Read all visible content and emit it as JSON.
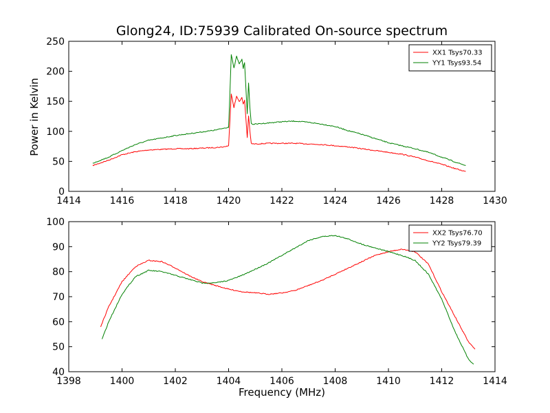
{
  "figure": {
    "title": "Glong24, ID:75939 Calibrated On-source spectrum",
    "xlabel": "Frequency (MHz)",
    "ylabel": "Power in Kelvin"
  },
  "chart_data": [
    {
      "type": "line",
      "title": "Glong24, ID:75939 Calibrated On-source spectrum",
      "xlabel": "",
      "ylabel": "Power in Kelvin",
      "xlim": [
        1414,
        1430
      ],
      "ylim": [
        0,
        250
      ],
      "xticks": [
        "1414",
        "1416",
        "1418",
        "1420",
        "1422",
        "1424",
        "1426",
        "1428",
        "1430"
      ],
      "yticks": [
        "0",
        "50",
        "100",
        "150",
        "200",
        "250"
      ],
      "grid": false,
      "legend": "top-right",
      "series": [
        {
          "name": "XX1 Tsys70.33",
          "color": "#ff0000",
          "x": [
            1414.9,
            1415.5,
            1416.0,
            1416.5,
            1417.0,
            1417.5,
            1418.0,
            1418.5,
            1419.0,
            1419.5,
            1419.8,
            1420.0,
            1420.05,
            1420.1,
            1420.2,
            1420.3,
            1420.4,
            1420.5,
            1420.55,
            1420.6,
            1420.7,
            1420.75,
            1420.8,
            1420.85,
            1420.9,
            1421.0,
            1421.5,
            1422.0,
            1422.5,
            1423.0,
            1423.5,
            1424.0,
            1424.5,
            1425.0,
            1425.5,
            1426.0,
            1426.5,
            1427.0,
            1427.5,
            1428.0,
            1428.5,
            1428.9
          ],
          "y": [
            43,
            52,
            61,
            66,
            69,
            70,
            71,
            71,
            72,
            73,
            74,
            76,
            118,
            163,
            140,
            158,
            150,
            156,
            145,
            152,
            90,
            126,
            100,
            80,
            79,
            79,
            80,
            80,
            80,
            79,
            78,
            76,
            74,
            71,
            68,
            65,
            62,
            57,
            51,
            45,
            38,
            33
          ]
        },
        {
          "name": "YY1 Tsys93.54",
          "color": "#008000",
          "x": [
            1414.9,
            1415.5,
            1416.0,
            1416.5,
            1417.0,
            1417.5,
            1418.0,
            1418.5,
            1419.0,
            1419.5,
            1419.8,
            1420.0,
            1420.05,
            1420.1,
            1420.2,
            1420.3,
            1420.4,
            1420.5,
            1420.55,
            1420.6,
            1420.7,
            1420.75,
            1420.8,
            1420.85,
            1420.9,
            1421.0,
            1421.5,
            1422.0,
            1422.5,
            1423.0,
            1423.5,
            1424.0,
            1424.5,
            1425.0,
            1425.5,
            1426.0,
            1426.5,
            1427.0,
            1427.5,
            1428.0,
            1428.5,
            1428.9
          ],
          "y": [
            47,
            57,
            68,
            78,
            85,
            89,
            93,
            96,
            99,
            102,
            105,
            107,
            165,
            228,
            205,
            225,
            212,
            220,
            205,
            215,
            130,
            180,
            140,
            113,
            112,
            112,
            114,
            116,
            117,
            115,
            112,
            108,
            101,
            95,
            88,
            81,
            76,
            71,
            65,
            57,
            49,
            43
          ]
        }
      ]
    },
    {
      "type": "line",
      "title": "",
      "xlabel": "Frequency (MHz)",
      "ylabel": "",
      "xlim": [
        1398,
        1414
      ],
      "ylim": [
        40,
        100
      ],
      "xticks": [
        "1398",
        "1400",
        "1402",
        "1404",
        "1406",
        "1408",
        "1410",
        "1412",
        "1414"
      ],
      "yticks": [
        "40",
        "50",
        "60",
        "70",
        "80",
        "90",
        "100"
      ],
      "grid": false,
      "legend": "top-right",
      "series": [
        {
          "name": "XX2 Tsys76.70",
          "color": "#ff0000",
          "x": [
            1399.2,
            1399.5,
            1400.0,
            1400.5,
            1401.0,
            1401.5,
            1402.0,
            1402.5,
            1403.0,
            1403.5,
            1404.0,
            1404.5,
            1405.0,
            1405.5,
            1406.0,
            1406.5,
            1407.0,
            1407.5,
            1408.0,
            1408.5,
            1409.0,
            1409.5,
            1410.0,
            1410.5,
            1411.0,
            1411.5,
            1412.0,
            1412.5,
            1413.0,
            1413.25
          ],
          "y": [
            58,
            66,
            76,
            82,
            84.5,
            84,
            81.5,
            78.5,
            76,
            74.5,
            73,
            72,
            71.5,
            71,
            71.5,
            72.5,
            74.5,
            76.5,
            79,
            81.5,
            84,
            86.5,
            88,
            89,
            88,
            83,
            72,
            62,
            52,
            49
          ]
        },
        {
          "name": "YY2 Tsys79.39",
          "color": "#008000",
          "x": [
            1399.25,
            1399.5,
            1400.0,
            1400.5,
            1401.0,
            1401.5,
            1402.0,
            1402.5,
            1403.0,
            1403.5,
            1404.0,
            1404.5,
            1405.0,
            1405.5,
            1406.0,
            1406.5,
            1407.0,
            1407.5,
            1408.0,
            1408.5,
            1409.0,
            1409.5,
            1410.0,
            1410.5,
            1411.0,
            1411.5,
            1412.0,
            1412.5,
            1413.0,
            1413.2
          ],
          "y": [
            53,
            60,
            71,
            78,
            80.5,
            80,
            78.5,
            77,
            75.5,
            75.5,
            76.5,
            78.5,
            81,
            83.5,
            86.5,
            89.5,
            92.5,
            94,
            94.5,
            93,
            91,
            89.5,
            88,
            86.5,
            84.5,
            79,
            69,
            56,
            45,
            43
          ]
        }
      ]
    }
  ]
}
